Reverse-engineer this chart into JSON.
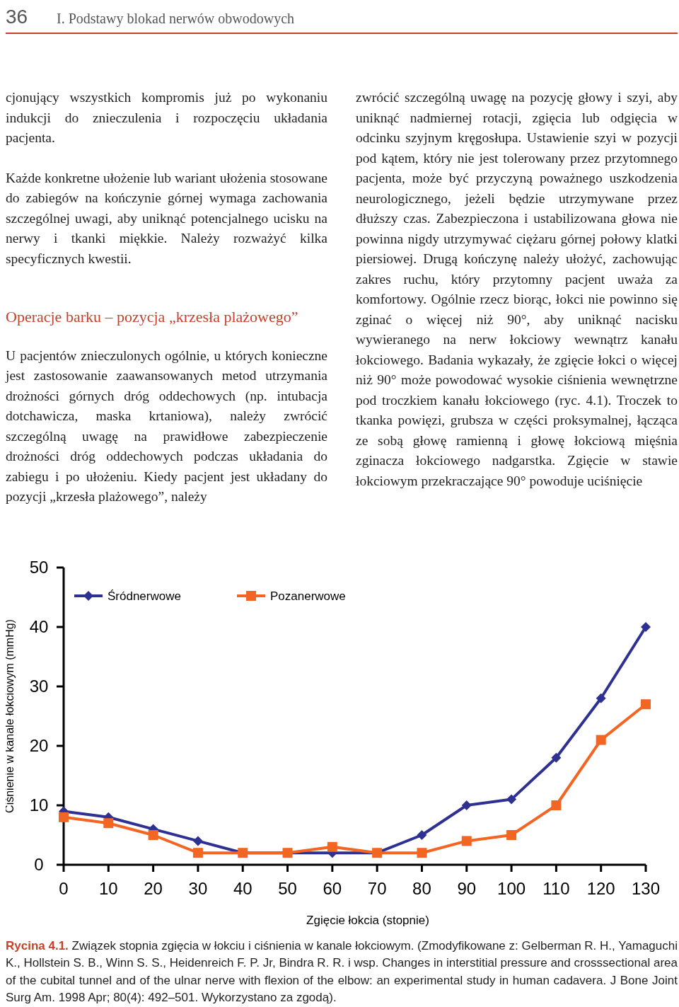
{
  "chart_data": {
    "type": "line",
    "xlabel": "Zgięcie łokcia (stopnie)",
    "ylabel": "Ciśnienie w kanale łokciowym (mmHg)",
    "x": [
      0,
      10,
      20,
      30,
      40,
      50,
      60,
      70,
      80,
      90,
      100,
      110,
      120,
      130
    ],
    "series": [
      {
        "name": "Śródnerwowe",
        "color": "#2e3192",
        "marker": "diamond",
        "values": [
          9,
          8,
          6,
          4,
          2,
          2,
          2,
          2,
          5,
          10,
          11,
          18,
          28,
          40
        ]
      },
      {
        "name": "Pozanerwowe",
        "color": "#f26522",
        "marker": "square",
        "values": [
          8,
          7,
          5,
          2,
          2,
          2,
          3,
          2,
          2,
          4,
          5,
          10,
          21,
          27
        ]
      }
    ],
    "xlim": [
      0,
      130
    ],
    "xticks": [
      0,
      10,
      20,
      30,
      40,
      50,
      60,
      70,
      80,
      90,
      100,
      110,
      120,
      130
    ],
    "ylim": [
      0,
      50
    ],
    "yticks": [
      0,
      10,
      20,
      30,
      40,
      50
    ],
    "grid": false,
    "legend": "top",
    "line_style": "solid",
    "annotations": [
      "36",
      "I. Podstawy blokad nerwów obwodowych",
      "cjonujący wszystkich kompromis już po wykonaniu indukcji do znieczulenia i rozpoczęciu układania pacjenta.",
      "Każde konkretne ułożenie lub wariant ułożenia stosowane do zabiegów na kończynie górnej wymaga zachowania szczególnej uwagi, aby uniknąć potencjalnego ucisku na nerwy i tkanki miękkie. Należy rozważyć kilka specyficznych kwestii.",
      "Operacje barku – pozycja „krzesła plażowego”",
      "U pacjentów znieczulonych ogólnie, u których konieczne jest zastosowanie zaawansowanych metod utrzymania drożności górnych dróg oddechowych (np. intubacja dotchawicza, maska krtaniowa), należy zwrócić szczególną uwagę na prawidłowe zabezpieczenie drożności dróg oddechowych podczas układania do zabiegu i po ułożeniu. Kiedy pacjent jest układany do pozycji „krzesła plażowego”, należy",
      "zwrócić szczególną uwagę na pozycję głowy i szyi, aby uniknąć nadmiernej rotacji, zgięcia lub odgięcia w odcinku szyjnym kręgosłupa. Ustawienie szyi w pozycji pod kątem, który nie jest tolerowany przez przytomnego pacjenta, może być przyczyną poważnego uszkodzenia neurologicznego, jeżeli będzie utrzymywane przez dłuższy czas. Zabezpieczona i ustabilizowana głowa nie powinna nigdy utrzymywać ciężaru górnej połowy klatki piersiowej. Drugą kończynę należy ułożyć, zachowując zakres ruchu, który przytomny pacjent uważa za komfortowy. Ogólnie rzecz biorąc, łokci nie powinno się zginać o więcej niż 90°, aby uniknąć nacisku wywieranego na nerw łokciowy wewnątrz kanału łokciowego. Badania wykazały, że zgięcie łokci o więcej niż 90° może powodować wysokie ciśnienia wewnętrzne pod troczkiem kanału łokciowego (ryc. 4.1). Troczek to tkanka powięzi, grubsza w części proksymalnej, łącząca ze sobą głowę ramienną i głowę łokciową mięśnia zginacza łokciowego nadgarstka. Zgięcie w stawie łokciowym przekraczające 90° powoduje uciśnięcie",
      "Rycina 4.1.",
      "Związek stopnia zgięcia w łokciu i ciśnienia w kanale łokciowym. (Zmodyfikowane z: Gelberman R. H., Yamaguchi K., Hollstein S. B., Winn S. S., Heidenreich F. P. Jr, Bindra R. R. i wsp. Changes in interstitial pressure and crosssectional area of the cubital tunnel and of the ulnar nerve with flexion of the elbow: an experimental study in human cadavera. J Bone Joint Surg Am. 1998 Apr; 80(4): 492–501. Wykorzystano za zgodą)."
    ]
  }
}
